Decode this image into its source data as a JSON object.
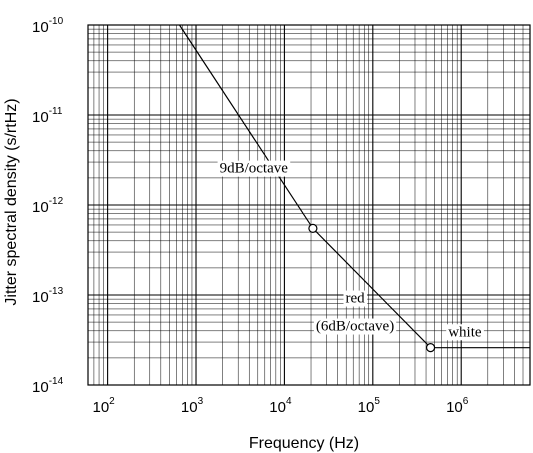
{
  "chart_data": {
    "type": "line",
    "xlabel": "Frequency (Hz)",
    "ylabel": "Jitter spectral density (s/rtHz)",
    "x_scale": "log",
    "y_scale": "log",
    "xlim": [
      60,
      6000000
    ],
    "ylim": [
      1e-14,
      1e-10
    ],
    "grid": true,
    "x_ticks": [
      {
        "value": 100,
        "base": "10",
        "exp": "2"
      },
      {
        "value": 1000,
        "base": "10",
        "exp": "3"
      },
      {
        "value": 10000,
        "base": "10",
        "exp": "4"
      },
      {
        "value": 100000,
        "base": "10",
        "exp": "5"
      },
      {
        "value": 1000000,
        "base": "10",
        "exp": "6"
      }
    ],
    "y_ticks": [
      {
        "value": 1e-10,
        "base": "10",
        "exp": "-10"
      },
      {
        "value": 1e-11,
        "base": "10",
        "exp": "-11"
      },
      {
        "value": 1e-12,
        "base": "10",
        "exp": "-12"
      },
      {
        "value": 1e-13,
        "base": "10",
        "exp": "-13"
      },
      {
        "value": 1e-14,
        "base": "10",
        "exp": "-14"
      }
    ],
    "series": [
      {
        "x": [
          650,
          21000,
          450000,
          6000000
        ],
        "y": [
          1e-10,
          5.5e-13,
          2.6e-14,
          2.6e-14
        ]
      }
    ],
    "markers": [
      {
        "x": 21000,
        "y": 5.5e-13
      },
      {
        "x": 450000,
        "y": 2.6e-14
      }
    ],
    "annotations": [
      {
        "text": "9dB/octave",
        "x": 4500,
        "y": 2.5e-12
      },
      {
        "text": "red",
        "x": 63000,
        "y": 9e-14
      },
      {
        "text": "(6dB/octave)",
        "x": 63000,
        "y": 4.4e-14
      },
      {
        "text": "white",
        "x": 1100000,
        "y": 3.8e-14
      }
    ]
  }
}
